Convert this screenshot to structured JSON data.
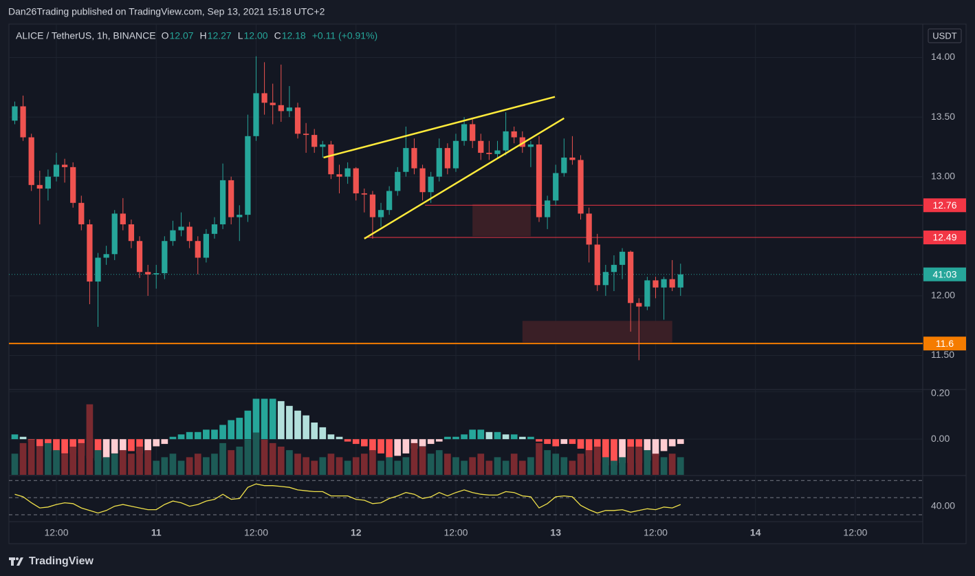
{
  "header": {
    "publisher": "Dan26Trading published on TradingView.com, Sep 13, 2021 15:18 UTC+2"
  },
  "footer": {
    "brand": "TradingView"
  },
  "chart_data": [
    {
      "type": "candlestick",
      "title": "ALICE / TetherUS, 1h, BINANCE",
      "legend": [
        {
          "label": "O",
          "value": "12.07"
        },
        {
          "label": "H",
          "value": "12.27"
        },
        {
          "label": "L",
          "value": "12.00"
        },
        {
          "label": "C",
          "value": "12.18"
        }
      ],
      "change": "+0.11 (+0.91%)",
      "currency": "USDT",
      "countdown": "41:03",
      "x": [
        7,
        8,
        9,
        10,
        11,
        12,
        13,
        14,
        15,
        16,
        17,
        18,
        19,
        20,
        21,
        22,
        23,
        24,
        25,
        26,
        27,
        28,
        29,
        30,
        31,
        32,
        33,
        34,
        35,
        36,
        37,
        38,
        39,
        40,
        41,
        42,
        43,
        44,
        45,
        46,
        47,
        48,
        49,
        50,
        51,
        52,
        53,
        54,
        55,
        56,
        57,
        58,
        59,
        60,
        61,
        62,
        63,
        64,
        65,
        66,
        67,
        68,
        69,
        70,
        71,
        72,
        73,
        74,
        75,
        76,
        77,
        78,
        79,
        80,
        81,
        82,
        83,
        84,
        85,
        86,
        87
      ],
      "open": [
        13.47,
        13.59,
        13.33,
        12.93,
        12.9,
        13.0,
        13.1,
        13.08,
        12.78,
        12.6,
        12.12,
        12.32,
        12.35,
        12.69,
        12.6,
        12.46,
        12.2,
        12.18,
        12.19,
        12.46,
        12.55,
        12.58,
        12.46,
        12.32,
        12.52,
        12.6,
        12.97,
        12.66,
        12.68,
        13.34,
        13.7,
        13.62,
        13.6,
        13.55,
        13.58,
        13.36,
        13.35,
        13.25,
        13.27,
        13.02,
        13.0,
        13.07,
        12.86,
        12.85,
        12.66,
        12.72,
        12.88,
        13.04,
        13.24,
        13.07,
        12.87,
        13.0,
        13.24,
        13.07,
        13.3,
        13.44,
        13.3,
        13.2,
        13.19,
        13.22,
        13.38,
        13.33,
        13.25,
        13.27,
        12.66,
        12.8,
        13.03,
        13.16,
        13.14,
        12.69,
        12.43,
        12.09,
        12.2,
        12.26,
        12.37,
        11.94,
        11.91,
        12.13,
        12.07,
        12.14,
        12.07
      ],
      "high": [
        13.63,
        13.68,
        13.36,
        13.05,
        13.06,
        13.2,
        13.15,
        13.12,
        12.84,
        12.64,
        12.36,
        12.42,
        12.72,
        12.82,
        12.64,
        12.5,
        12.26,
        12.26,
        12.5,
        12.63,
        12.7,
        12.62,
        12.5,
        12.56,
        12.66,
        13.11,
        13.0,
        12.76,
        13.52,
        14.01,
        13.96,
        13.78,
        13.94,
        13.76,
        13.62,
        13.45,
        13.4,
        13.3,
        13.3,
        13.1,
        13.12,
        13.08,
        12.9,
        12.88,
        12.78,
        12.92,
        13.08,
        13.42,
        13.32,
        13.1,
        13.04,
        13.32,
        13.28,
        13.36,
        13.5,
        13.48,
        13.36,
        13.3,
        13.3,
        13.54,
        13.42,
        13.38,
        13.3,
        13.34,
        12.84,
        13.1,
        13.32,
        13.34,
        13.18,
        12.74,
        12.52,
        12.26,
        12.34,
        12.4,
        12.38,
        11.98,
        12.16,
        12.16,
        12.16,
        12.3,
        12.27
      ],
      "low": [
        13.44,
        13.3,
        12.88,
        12.6,
        12.8,
        12.96,
        12.95,
        12.74,
        12.55,
        11.93,
        11.74,
        12.26,
        12.3,
        12.55,
        12.4,
        12.15,
        12.0,
        12.06,
        12.14,
        12.42,
        12.5,
        12.4,
        12.18,
        12.28,
        12.48,
        12.56,
        12.6,
        12.46,
        12.62,
        13.3,
        13.52,
        13.44,
        13.46,
        13.5,
        13.32,
        13.2,
        13.2,
        13.16,
        12.98,
        12.86,
        12.94,
        12.8,
        12.7,
        12.48,
        12.58,
        12.68,
        12.84,
        13.0,
        13.02,
        12.8,
        12.78,
        12.96,
        13.02,
        13.04,
        13.26,
        13.24,
        13.14,
        13.14,
        13.16,
        13.18,
        13.28,
        13.2,
        13.08,
        12.62,
        12.56,
        12.76,
        13.0,
        13.1,
        12.64,
        12.28,
        12.04,
        12.0,
        12.04,
        12.14,
        11.7,
        11.46,
        11.88,
        11.98,
        11.8,
        12.04,
        12.0
      ],
      "close": [
        13.59,
        13.33,
        12.93,
        12.9,
        13.0,
        13.1,
        13.08,
        12.78,
        12.6,
        12.12,
        12.32,
        12.35,
        12.69,
        12.6,
        12.46,
        12.2,
        12.18,
        12.19,
        12.46,
        12.55,
        12.58,
        12.46,
        12.32,
        12.52,
        12.6,
        12.97,
        12.66,
        12.68,
        13.34,
        13.7,
        13.62,
        13.6,
        13.55,
        13.58,
        13.36,
        13.35,
        13.25,
        13.27,
        13.02,
        13.0,
        13.07,
        12.86,
        12.85,
        12.66,
        12.72,
        12.88,
        13.04,
        13.24,
        13.07,
        12.87,
        13.0,
        13.24,
        13.07,
        13.3,
        13.44,
        13.3,
        13.2,
        13.19,
        13.22,
        13.38,
        13.33,
        13.25,
        13.27,
        12.66,
        12.8,
        13.03,
        13.16,
        13.14,
        12.69,
        12.43,
        12.09,
        12.2,
        12.26,
        12.37,
        11.94,
        11.91,
        12.13,
        12.07,
        12.14,
        12.07,
        12.18
      ],
      "up_color": "#26a69a",
      "down_color": "#ef5350",
      "xlim": [
        6.3,
        116.1
      ],
      "ylim": [
        11.22,
        14.28
      ],
      "xticks": [
        {
          "value": 12,
          "label": "12:00"
        },
        {
          "value": 24,
          "label": "11"
        },
        {
          "value": 36,
          "label": "12:00"
        },
        {
          "value": 48,
          "label": "12"
        },
        {
          "value": 60,
          "label": "12:00"
        },
        {
          "value": 72,
          "label": "13"
        },
        {
          "value": 84,
          "label": "12:00"
        },
        {
          "value": 96,
          "label": "14"
        },
        {
          "value": 108,
          "label": "12:00"
        }
      ],
      "yticks": [
        {
          "value": 14,
          "label": "14.00"
        },
        {
          "value": 13.5,
          "label": "13.50"
        },
        {
          "value": 13,
          "label": "13.00"
        },
        {
          "value": 12,
          "label": "12.00"
        },
        {
          "value": 11.5,
          "label": "11.50"
        }
      ],
      "grid": true,
      "levels": [
        {
          "value": 12.76,
          "x0": 56.3,
          "color": "#f23645"
        },
        {
          "value": 12.49,
          "x0": 49,
          "color": "#f23645"
        },
        {
          "value": 11.6,
          "x0": 6.3,
          "color": "#f57c00"
        }
      ],
      "trendlines": [
        {
          "x": [
            44.1,
            71.9
          ],
          "y": [
            13.16,
            13.67
          ]
        },
        {
          "x": [
            49,
            73
          ],
          "y": [
            12.48,
            13.49
          ]
        }
      ],
      "trendline_color": "#ffeb3b",
      "zones": [
        {
          "x": [
            62,
            69
          ],
          "y": [
            12.5,
            12.77
          ]
        },
        {
          "x": [
            68,
            86
          ],
          "y": [
            11.61,
            11.79
          ]
        }
      ],
      "zone_color": "#3a1f26"
    },
    {
      "type": "histogram",
      "values": [
        0.02,
        0.01,
        -0.01,
        -0.03,
        -0.05,
        -0.05,
        -0.06,
        -0.06,
        -0.07,
        -0.08,
        -0.09,
        -0.08,
        -0.06,
        -0.05,
        -0.05,
        -0.06,
        -0.05,
        -0.03,
        -0.02,
        0.01,
        0.02,
        0.03,
        0.03,
        0.04,
        0.04,
        0.06,
        0.08,
        0.09,
        0.12,
        0.17,
        0.17,
        0.17,
        0.16,
        0.14,
        0.12,
        0.1,
        0.07,
        0.05,
        0.02,
        0.01,
        -0.01,
        -0.02,
        -0.03,
        -0.05,
        -0.06,
        -0.08,
        -0.07,
        -0.06,
        -0.04,
        -0.03,
        -0.02,
        -0.01,
        0.01,
        0.01,
        0.02,
        0.04,
        0.04,
        0.03,
        0.03,
        0.02,
        0.02,
        0.01,
        0.01,
        -0.01,
        -0.02,
        -0.03,
        -0.02,
        -0.02,
        -0.04,
        -0.07,
        -0.1,
        -0.11,
        -0.11,
        -0.1,
        -0.1,
        -0.1,
        -0.09,
        -0.07,
        -0.05,
        -0.03,
        -0.02
      ],
      "colors": {
        "pos_rising": "#26a69a",
        "pos_falling": "#b2dfdb",
        "neg_falling": "#ff5252",
        "neg_rising": "#ffcdd2"
      },
      "volume": [
        30,
        45,
        50,
        40,
        45,
        35,
        30,
        40,
        45,
        100,
        35,
        25,
        30,
        35,
        30,
        40,
        35,
        20,
        25,
        30,
        20,
        25,
        30,
        25,
        30,
        45,
        35,
        40,
        50,
        60,
        50,
        45,
        40,
        35,
        30,
        25,
        20,
        25,
        30,
        25,
        20,
        25,
        30,
        35,
        20,
        25,
        20,
        25,
        45,
        40,
        30,
        35,
        30,
        25,
        20,
        25,
        30,
        20,
        25,
        20,
        30,
        20,
        25,
        45,
        35,
        30,
        25,
        20,
        30,
        35,
        40,
        25,
        20,
        25,
        40,
        40,
        35,
        30,
        25,
        30,
        25
      ],
      "volume_ylim": [
        0,
        120
      ],
      "volume_colors": {
        "up": "#1d5b56",
        "down": "#7a2a30"
      },
      "ylim": [
        -0.15,
        0.206
      ],
      "yticks": [
        {
          "value": 0.2,
          "label": "0.20"
        },
        {
          "value": 0,
          "label": "0.00"
        }
      ]
    },
    {
      "type": "line",
      "values": [
        54,
        51,
        44,
        38,
        39,
        42,
        44,
        43,
        38,
        35,
        32,
        35,
        40,
        42,
        40,
        38,
        36,
        36,
        42,
        46,
        44,
        40,
        42,
        46,
        48,
        54,
        48,
        49,
        62,
        66,
        64,
        64,
        63,
        62,
        59,
        58,
        57,
        57,
        52,
        52,
        52,
        48,
        47,
        43,
        44,
        49,
        52,
        56,
        54,
        49,
        51,
        56,
        52,
        56,
        59,
        56,
        54,
        53,
        53,
        57,
        56,
        52,
        51,
        38,
        43,
        51,
        52,
        51,
        41,
        36,
        32,
        35,
        35,
        36,
        33,
        35,
        37,
        36,
        39,
        38,
        42
      ],
      "color": "#f0e14a",
      "ylim": [
        22,
        75
      ],
      "yticks": [
        {
          "value": 40,
          "label": "40.00"
        }
      ],
      "bands": [
        70,
        50,
        30
      ]
    }
  ]
}
